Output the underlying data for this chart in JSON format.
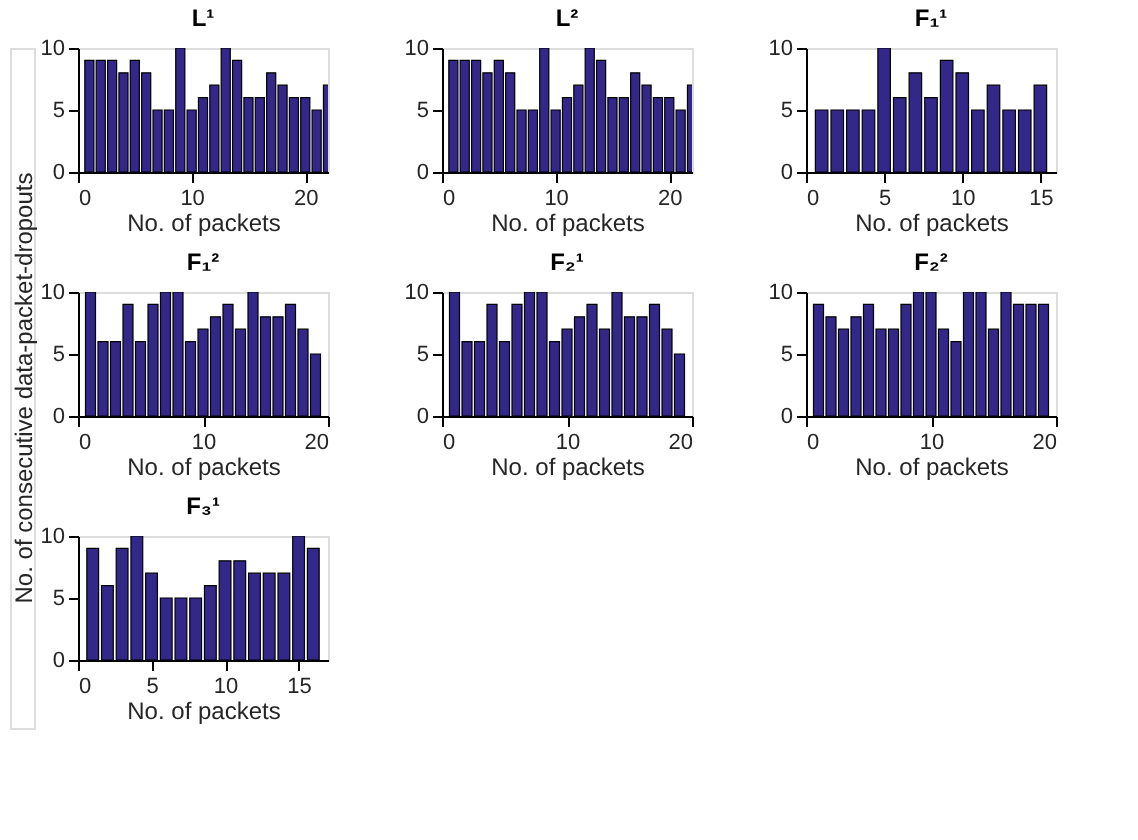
{
  "chart_data": [
    {
      "type": "bar",
      "title": "L¹",
      "xlabel": "No. of packets",
      "x": [
        1,
        2,
        3,
        4,
        5,
        6,
        7,
        8,
        9,
        10,
        11,
        12,
        13,
        14,
        15,
        16,
        17,
        18,
        19,
        20,
        21,
        22
      ],
      "values": [
        9,
        9,
        9,
        8,
        9,
        8,
        5,
        5,
        10,
        5,
        6,
        7,
        10,
        9,
        6,
        6,
        8,
        7,
        6,
        6,
        5,
        7
      ],
      "color": "#33288a",
      "xlim": [
        0,
        22
      ],
      "xticks": [
        0,
        10,
        20
      ],
      "ylim": [
        0,
        10
      ],
      "yticks": [
        0,
        5,
        10
      ],
      "grid": false
    },
    {
      "type": "bar",
      "title": "L²",
      "xlabel": "No. of packets",
      "x": [
        1,
        2,
        3,
        4,
        5,
        6,
        7,
        8,
        9,
        10,
        11,
        12,
        13,
        14,
        15,
        16,
        17,
        18,
        19,
        20,
        21,
        22
      ],
      "values": [
        9,
        9,
        9,
        8,
        9,
        8,
        5,
        5,
        10,
        5,
        6,
        7,
        10,
        9,
        6,
        6,
        8,
        7,
        6,
        6,
        5,
        7
      ],
      "color": "#33288a",
      "xlim": [
        0,
        22
      ],
      "xticks": [
        0,
        10,
        20
      ],
      "ylim": [
        0,
        10
      ],
      "yticks": [
        0,
        5,
        10
      ],
      "grid": false
    },
    {
      "type": "bar",
      "title": "F₁¹",
      "xlabel": "No. of packets",
      "x": [
        1,
        2,
        3,
        4,
        5,
        6,
        7,
        8,
        9,
        10,
        11,
        12,
        13,
        14,
        15
      ],
      "values": [
        5,
        5,
        5,
        5,
        10,
        6,
        8,
        6,
        9,
        8,
        5,
        7,
        5,
        5,
        7
      ],
      "color": "#33288a",
      "xlim": [
        0,
        16
      ],
      "xticks": [
        0,
        5,
        10,
        15
      ],
      "ylim": [
        0,
        10
      ],
      "yticks": [
        0,
        5,
        10
      ],
      "grid": false
    },
    {
      "type": "bar",
      "title": "F₁²",
      "xlabel": "No. of packets",
      "ylabel": "No. of consecutive data-packet-dropouts",
      "x": [
        1,
        2,
        3,
        4,
        5,
        6,
        7,
        8,
        9,
        10,
        11,
        12,
        13,
        14,
        15,
        16,
        17,
        18,
        19
      ],
      "values": [
        10,
        6,
        6,
        9,
        6,
        9,
        10,
        10,
        6,
        7,
        8,
        9,
        7,
        10,
        8,
        8,
        9,
        7,
        5
      ],
      "color": "#33288a",
      "xlim": [
        0,
        20
      ],
      "xticks": [
        0,
        10,
        20
      ],
      "ylim": [
        0,
        10
      ],
      "yticks": [
        0,
        5,
        10
      ],
      "grid": false
    },
    {
      "type": "bar",
      "title": "F₂¹",
      "xlabel": "No. of packets",
      "x": [
        1,
        2,
        3,
        4,
        5,
        6,
        7,
        8,
        9,
        10,
        11,
        12,
        13,
        14,
        15,
        16,
        17,
        18,
        19
      ],
      "values": [
        10,
        6,
        6,
        9,
        6,
        9,
        10,
        10,
        6,
        7,
        8,
        9,
        7,
        10,
        8,
        8,
        9,
        7,
        5
      ],
      "color": "#33288a",
      "xlim": [
        0,
        20
      ],
      "xticks": [
        0,
        10,
        20
      ],
      "ylim": [
        0,
        10
      ],
      "yticks": [
        0,
        5,
        10
      ],
      "grid": false
    },
    {
      "type": "bar",
      "title": "F₂²",
      "xlabel": "No. of packets",
      "x": [
        1,
        2,
        3,
        4,
        5,
        6,
        7,
        8,
        9,
        10,
        11,
        12,
        13,
        14,
        15,
        16,
        17,
        18,
        19
      ],
      "values": [
        9,
        8,
        7,
        8,
        9,
        7,
        7,
        9,
        10,
        10,
        7,
        6,
        10,
        10,
        7,
        10,
        9,
        9,
        9
      ],
      "color": "#33288a",
      "xlim": [
        0,
        20
      ],
      "xticks": [
        0,
        10,
        20
      ],
      "ylim": [
        0,
        10
      ],
      "yticks": [
        0,
        5,
        10
      ],
      "grid": false
    },
    {
      "type": "bar",
      "title": "F₃¹",
      "xlabel": "No. of packets",
      "x": [
        1,
        2,
        3,
        4,
        5,
        6,
        7,
        8,
        9,
        10,
        11,
        12,
        13,
        14,
        15,
        16
      ],
      "values": [
        9,
        6,
        9,
        10,
        7,
        5,
        5,
        5,
        6,
        8,
        8,
        7,
        7,
        7,
        10,
        9
      ],
      "color": "#33288a",
      "xlim": [
        0,
        17
      ],
      "xticks": [
        0,
        5,
        10,
        15
      ],
      "ylim": [
        0,
        10
      ],
      "yticks": [
        0,
        5,
        10
      ],
      "grid": false
    }
  ]
}
